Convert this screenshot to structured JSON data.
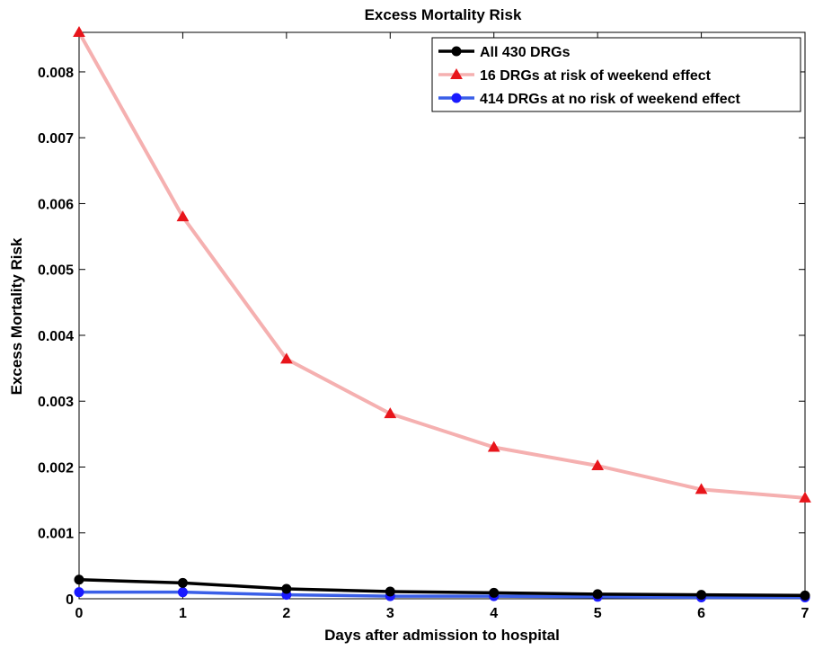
{
  "chart_data": {
    "type": "line",
    "title": "Excess Mortality Risk",
    "xlabel": "Days after admission to hospital",
    "ylabel": "Excess Mortality Risk",
    "xlim": [
      0,
      7
    ],
    "ylim": [
      0,
      0.0086
    ],
    "xticks": [
      0,
      1,
      2,
      3,
      4,
      5,
      6,
      7
    ],
    "xtick_labels": [
      "0",
      "1",
      "2",
      "3",
      "4",
      "5",
      "6",
      "7"
    ],
    "yticks": [
      0,
      0.001,
      0.002,
      0.003,
      0.004,
      0.005,
      0.006,
      0.007,
      0.008
    ],
    "ytick_labels": [
      "0",
      "0.001",
      "0.002",
      "0.003",
      "0.004",
      "0.005",
      "0.006",
      "0.007",
      "0.008"
    ],
    "grid": false,
    "legend_position": "top-right",
    "x": [
      0,
      1,
      2,
      3,
      4,
      5,
      6,
      7
    ],
    "series": [
      {
        "name": "All 430 DRGs",
        "values": [
          0.00029,
          0.00024,
          0.00015,
          0.00011,
          9e-05,
          7e-05,
          6e-05,
          5e-05
        ],
        "color": "#000000",
        "line_color": "#000000",
        "marker": "circle"
      },
      {
        "name": "16 DRGs at risk of weekend effect",
        "values": [
          0.0086,
          0.0058,
          0.00364,
          0.00281,
          0.0023,
          0.00202,
          0.00166,
          0.00153
        ],
        "color": "#e8151b",
        "line_color": "#f5b0b0",
        "marker": "triangle"
      },
      {
        "name": "414 DRGs at no risk of weekend effect",
        "values": [
          0.0001,
          0.0001,
          6e-05,
          4e-05,
          4e-05,
          3e-05,
          2e-05,
          2e-05
        ],
        "color": "#1a1aff",
        "line_color": "#3a5fe8",
        "marker": "circle"
      }
    ]
  }
}
